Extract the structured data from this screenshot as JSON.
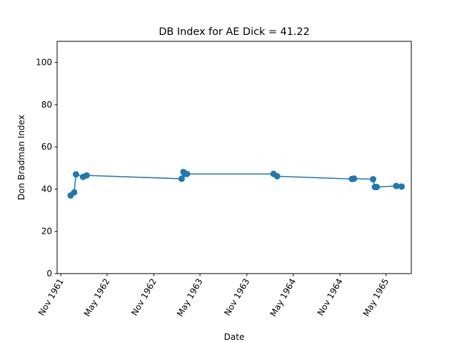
{
  "chart_data": {
    "type": "line",
    "title": "DB Index for AE Dick = 41.22",
    "xlabel": "Date",
    "ylabel": "Don Bradman Index",
    "ylim": [
      0,
      110
    ],
    "xlim": [
      "1961-10-17",
      "1965-08-08"
    ],
    "yticks": [
      0,
      20,
      40,
      60,
      80,
      100
    ],
    "xticks": [
      {
        "date": "1961-11-01",
        "label": "Nov 1961"
      },
      {
        "date": "1962-05-01",
        "label": "May 1962"
      },
      {
        "date": "1962-11-01",
        "label": "Nov 1962"
      },
      {
        "date": "1963-05-01",
        "label": "May 1963"
      },
      {
        "date": "1963-11-01",
        "label": "Nov 1963"
      },
      {
        "date": "1964-05-01",
        "label": "May 1964"
      },
      {
        "date": "1964-11-01",
        "label": "Nov 1964"
      },
      {
        "date": "1965-05-01",
        "label": "May 1965"
      }
    ],
    "grid": false,
    "line_color": "#1f77b4",
    "series": [
      {
        "x": [
          "1961-12-09",
          "1961-12-23",
          "1961-12-30",
          "1962-01-27",
          "1962-02-10",
          "1963-02-18",
          "1963-02-25",
          "1963-03-04",
          "1963-03-11",
          "1964-02-14",
          "1964-02-28",
          "1964-12-18",
          "1964-12-26",
          "1965-03-11",
          "1965-03-18",
          "1965-03-25",
          "1965-06-10",
          "1965-07-01"
        ],
        "y": [
          37.0,
          38.5,
          47.0,
          45.8,
          46.5,
          44.9,
          48.1,
          47.2,
          47.2,
          47.2,
          46.1,
          44.8,
          45.0,
          44.7,
          41.0,
          41.0,
          41.5,
          41.22
        ]
      }
    ]
  }
}
